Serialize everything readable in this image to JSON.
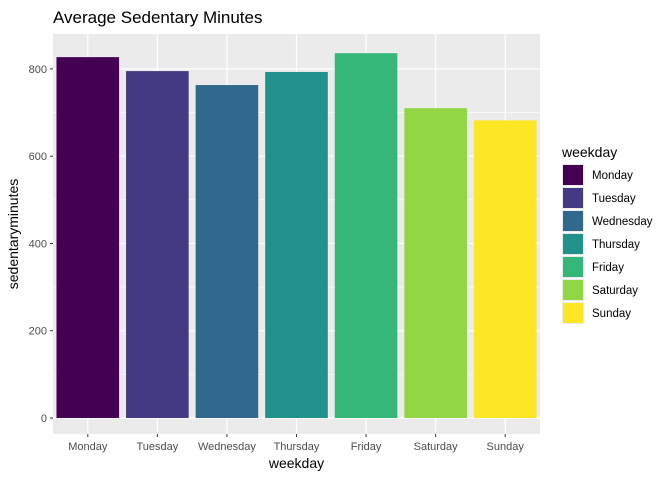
{
  "chart_data": {
    "type": "bar",
    "title": "Average Sedentary Minutes",
    "xlabel": "weekday",
    "ylabel": "sedentaryminutes",
    "categories": [
      "Monday",
      "Tuesday",
      "Wednesday",
      "Thursday",
      "Friday",
      "Saturday",
      "Sunday"
    ],
    "values": [
      827,
      795,
      763,
      793,
      836,
      710,
      682
    ],
    "colors": [
      "#440154",
      "#443983",
      "#31688e",
      "#21918c",
      "#35b779",
      "#90d743",
      "#fde725"
    ],
    "ylim": [
      0,
      880
    ],
    "yticks": [
      0,
      200,
      400,
      600,
      800
    ],
    "grid": true,
    "panel_background": "#ebebeb",
    "legend": {
      "title": "weekday",
      "position": "right",
      "entries": [
        "Monday",
        "Tuesday",
        "Wednesday",
        "Thursday",
        "Friday",
        "Saturday",
        "Sunday"
      ]
    }
  }
}
